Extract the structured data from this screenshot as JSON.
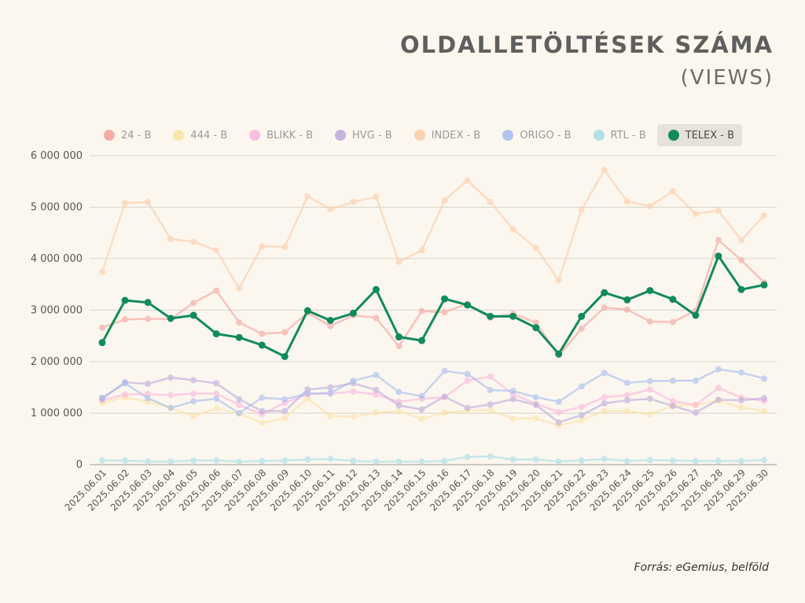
{
  "header": {
    "title": "OLDALLETÖLTÉSEK SZÁMA",
    "subtitle": "(VIEWS)"
  },
  "footer": {
    "source": "Forrás: eGemius, belföld"
  },
  "chart_data": {
    "type": "line",
    "ylim": [
      0,
      6000000
    ],
    "yticks": [
      0,
      1000000,
      2000000,
      3000000,
      4000000,
      5000000,
      6000000
    ],
    "ytick_labels": [
      "0",
      "1 000 000",
      "2 000 000",
      "3 000 000",
      "4 000 000",
      "5 000 000",
      "6 000 000"
    ],
    "grid": true,
    "legend_position": "top",
    "categories": [
      "2025.06.01",
      "2025.06.02",
      "2025.06.03",
      "2025.06.04",
      "2025.06.05",
      "2025.06.06",
      "2025.06.07",
      "2025.06.08",
      "2025.06.09",
      "2025.06.10",
      "2025.06.11",
      "2025.06.12",
      "2025.06.13",
      "2025.06.14",
      "2025.06.15",
      "2025.06.16",
      "2025.06.17",
      "2025.06.18",
      "2025.06.19",
      "2025.06.20",
      "2025.06.21",
      "2025.06.22",
      "2025.06.23",
      "2025.06.24",
      "2025.06.25",
      "2025.06.26",
      "2025.06.27",
      "2025.06.28",
      "2025.06.29",
      "2025.06.30"
    ],
    "highlighted_series": "TELEX - B",
    "series": [
      {
        "name": "24 - B",
        "color": "#f4a09a",
        "values": [
          2660000,
          2820000,
          2830000,
          2830000,
          3140000,
          3380000,
          2760000,
          2540000,
          2570000,
          2950000,
          2690000,
          2900000,
          2850000,
          2300000,
          2980000,
          2960000,
          3120000,
          2850000,
          2930000,
          2760000,
          2120000,
          2640000,
          3050000,
          3010000,
          2780000,
          2770000,
          2990000,
          4360000,
          3970000,
          3540000
        ]
      },
      {
        "name": "444 - B",
        "color": "#fbe3a3",
        "values": [
          1200000,
          1310000,
          1220000,
          1100000,
          940000,
          1090000,
          990000,
          810000,
          900000,
          1290000,
          940000,
          930000,
          1010000,
          1040000,
          890000,
          1010000,
          1050000,
          1060000,
          890000,
          900000,
          760000,
          860000,
          1040000,
          1040000,
          980000,
          1140000,
          1160000,
          1240000,
          1110000,
          1040000
        ]
      },
      {
        "name": "BLIKK - B",
        "color": "#fbb3dc",
        "values": [
          1250000,
          1360000,
          1370000,
          1350000,
          1380000,
          1380000,
          1160000,
          980000,
          1200000,
          1370000,
          1380000,
          1420000,
          1360000,
          1220000,
          1280000,
          1310000,
          1630000,
          1710000,
          1370000,
          1180000,
          1020000,
          1120000,
          1310000,
          1350000,
          1460000,
          1230000,
          1160000,
          1490000,
          1300000,
          1240000
        ]
      },
      {
        "name": "HVG - B",
        "color": "#bba8dc",
        "values": [
          1280000,
          1600000,
          1570000,
          1690000,
          1640000,
          1580000,
          1270000,
          1040000,
          1040000,
          1460000,
          1500000,
          1580000,
          1450000,
          1150000,
          1070000,
          1320000,
          1100000,
          1170000,
          1270000,
          1160000,
          820000,
          960000,
          1190000,
          1250000,
          1280000,
          1140000,
          1010000,
          1260000,
          1250000,
          1290000
        ]
      },
      {
        "name": "INDEX - B",
        "color": "#fbcba6",
        "values": [
          3740000,
          5080000,
          5100000,
          4380000,
          4330000,
          4160000,
          3420000,
          4240000,
          4230000,
          5210000,
          4960000,
          5100000,
          5200000,
          3940000,
          4160000,
          5130000,
          5520000,
          5100000,
          4570000,
          4210000,
          3580000,
          4950000,
          5720000,
          5110000,
          5020000,
          5310000,
          4870000,
          4930000,
          4360000,
          4840000
        ]
      },
      {
        "name": "ORIGO - B",
        "color": "#a3bbf1",
        "values": [
          1300000,
          1580000,
          1290000,
          1100000,
          1230000,
          1280000,
          1000000,
          1300000,
          1270000,
          1380000,
          1390000,
          1630000,
          1740000,
          1410000,
          1330000,
          1820000,
          1760000,
          1450000,
          1430000,
          1310000,
          1220000,
          1520000,
          1780000,
          1590000,
          1620000,
          1630000,
          1630000,
          1850000,
          1790000,
          1670000
        ]
      },
      {
        "name": "RTL - B",
        "color": "#a3dde7",
        "values": [
          80000,
          80000,
          60000,
          60000,
          80000,
          80000,
          60000,
          70000,
          80000,
          100000,
          110000,
          70000,
          60000,
          60000,
          60000,
          70000,
          150000,
          160000,
          100000,
          100000,
          60000,
          80000,
          110000,
          70000,
          90000,
          80000,
          70000,
          70000,
          70000,
          90000
        ]
      },
      {
        "name": "TELEX - B",
        "color": "#118a5c",
        "values": [
          2370000,
          3190000,
          3150000,
          2840000,
          2900000,
          2540000,
          2470000,
          2320000,
          2100000,
          2990000,
          2800000,
          2940000,
          3400000,
          2480000,
          2410000,
          3220000,
          3100000,
          2880000,
          2880000,
          2660000,
          2150000,
          2880000,
          3340000,
          3200000,
          3380000,
          3210000,
          2900000,
          4050000,
          3400000,
          3490000
        ]
      }
    ]
  }
}
